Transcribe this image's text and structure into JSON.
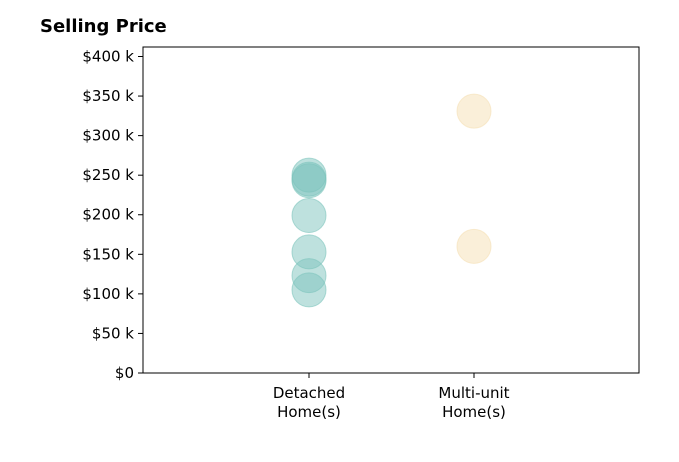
{
  "chart_data": {
    "type": "scatter",
    "title": "Selling Price",
    "categories": [
      "Detached\nHome(s)",
      "Multi-unit\nHome(s)"
    ],
    "y_tick_labels": [
      "$0",
      "$50 k",
      "$100 k",
      "$150 k",
      "$200 k",
      "$250 k",
      "$300 k",
      "$350 k",
      "$400 k"
    ],
    "ylim": [
      0,
      412000
    ],
    "series": [
      {
        "category": "Detached\nHome(s)",
        "color": "#7dc4bd",
        "values": [
          105000,
          123000,
          153000,
          199000,
          243000,
          245000,
          250000
        ]
      },
      {
        "category": "Multi-unit\nHome(s)",
        "color": "#f5e0b4",
        "values": [
          160000,
          331000
        ]
      }
    ],
    "grid": false
  }
}
